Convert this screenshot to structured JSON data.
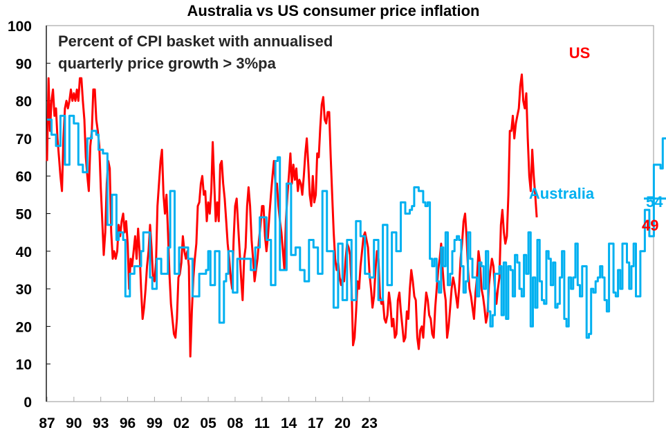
{
  "chart_data": {
    "type": "line",
    "title": "Australia vs US consumer price inflation",
    "subtitle": [
      "Percent of CPI basket with annualised",
      "quarterly price growth > 3%pa"
    ],
    "xlabel": "",
    "ylabel": "",
    "ylim": [
      0,
      100
    ],
    "xlim": [
      1987,
      2024
    ],
    "grid": false,
    "y_ticks": [
      "0",
      "10",
      "20",
      "30",
      "40",
      "50",
      "60",
      "70",
      "80",
      "90",
      "100"
    ],
    "y_tick_values": [
      0,
      10,
      20,
      30,
      40,
      50,
      60,
      70,
      80,
      90,
      100
    ],
    "x_ticks": [
      "87",
      "90",
      "93",
      "96",
      "99",
      "02",
      "05",
      "08",
      "11",
      "14",
      "17",
      "20",
      "23"
    ],
    "x_tick_values": [
      1987,
      1990,
      1993,
      1996,
      1999,
      2002,
      2005,
      2008,
      2011,
      2014,
      2017,
      2020,
      2023
    ],
    "series": [
      {
        "name": "US",
        "label": "US",
        "color": "#ff0000",
        "end_value_label": "49",
        "step": false,
        "x_start": 1987.0,
        "x_step": 0.1667,
        "values": [
          64,
          86,
          72,
          80,
          83,
          76,
          78,
          70,
          65,
          60,
          56,
          70,
          78,
          80,
          78,
          80,
          83,
          80,
          82,
          80,
          83,
          80,
          86,
          86,
          80,
          75,
          65,
          60,
          56,
          68,
          72,
          83,
          83,
          75,
          72,
          68,
          57,
          48,
          39,
          45,
          58,
          64,
          62,
          45,
          38,
          40,
          38,
          40,
          47,
          44,
          48,
          50,
          45,
          48,
          42,
          30,
          38,
          36,
          40,
          44,
          38,
          46,
          40,
          30,
          22,
          25,
          30,
          36,
          40,
          47,
          41,
          33,
          32,
          37,
          52,
          58,
          64,
          67,
          55,
          50,
          55,
          45,
          34,
          26,
          22,
          18,
          17,
          22,
          33,
          34,
          37,
          44,
          40,
          38,
          40,
          36,
          12,
          24,
          33,
          38,
          42,
          52,
          53,
          58,
          60,
          55,
          56,
          48,
          53,
          50,
          56,
          69,
          58,
          48,
          53,
          48,
          63,
          64,
          58,
          54,
          48,
          42,
          38,
          33,
          30,
          43,
          52,
          54,
          47,
          40,
          33,
          27,
          38,
          41,
          52,
          57,
          52,
          43,
          38,
          32,
          35,
          38,
          43,
          47,
          52,
          52,
          44,
          40,
          44,
          50,
          55,
          60,
          64,
          58,
          58,
          52,
          48,
          45,
          40,
          35,
          48,
          55,
          60,
          66,
          58,
          63,
          59,
          62,
          56,
          59,
          58,
          55,
          60,
          66,
          70,
          63,
          55,
          52,
          60,
          53,
          55,
          66,
          65,
          73,
          79,
          81,
          75,
          74,
          77,
          77,
          65,
          55,
          45,
          38,
          35,
          37,
          33,
          31,
          33,
          32,
          38,
          42,
          41,
          39,
          30,
          15,
          17,
          24,
          32,
          30,
          36,
          40,
          44,
          45,
          43,
          41,
          34,
          30,
          25,
          28,
          35,
          40,
          38,
          28,
          26,
          27,
          22,
          21,
          23,
          29,
          26,
          20,
          22,
          17,
          18,
          27,
          29,
          24,
          20,
          16,
          17,
          24,
          22,
          30,
          35,
          32,
          28,
          27,
          17,
          14,
          19,
          20,
          17,
          24,
          29,
          27,
          23,
          22,
          18,
          17,
          25,
          30,
          35,
          38,
          42,
          35,
          30,
          27,
          17,
          20,
          25,
          30,
          33,
          31,
          28,
          25,
          30,
          38,
          42,
          48,
          50,
          44,
          35,
          30,
          28,
          25,
          22,
          29,
          33,
          40,
          37,
          30,
          28,
          25,
          21,
          23,
          31,
          35,
          38,
          36,
          30,
          26,
          30,
          33,
          47,
          51,
          45,
          42,
          44,
          55,
          72,
          72,
          76,
          70,
          74,
          76,
          78,
          84,
          87,
          80,
          78,
          82,
          70,
          60,
          56,
          67,
          60,
          55,
          49
        ]
      },
      {
        "name": "Australia",
        "label": "Australia",
        "color": "#00b0f0",
        "end_value_label": "54",
        "step": true,
        "x_start": 1987.0,
        "x_step": 0.25,
        "values": [
          75,
          75,
          71,
          71,
          68,
          68,
          76,
          76,
          63,
          63,
          76,
          76,
          74,
          74,
          63,
          63,
          61,
          61,
          70,
          70,
          72,
          72,
          71,
          67,
          67,
          66,
          66,
          47,
          47,
          55,
          55,
          43,
          45,
          45,
          43,
          28,
          28,
          34,
          34,
          36,
          36,
          36,
          40,
          45,
          45,
          45,
          33,
          30,
          30,
          38,
          38,
          34,
          34,
          34,
          41,
          56,
          56,
          34,
          34,
          41,
          41,
          41,
          41,
          38,
          38,
          28,
          28,
          28,
          34,
          34,
          34,
          35,
          40,
          31,
          31,
          40,
          40,
          21,
          21,
          32,
          34,
          40,
          40,
          29,
          29,
          38,
          38,
          38,
          38,
          38,
          38,
          35,
          35,
          41,
          41,
          49,
          49,
          49,
          43,
          43,
          31,
          31,
          64,
          65,
          35,
          35,
          35,
          58,
          58,
          39,
          39,
          41,
          41,
          35,
          35,
          32,
          32,
          43,
          43,
          41,
          41,
          34,
          34,
          56,
          56,
          40,
          40,
          40,
          25,
          25,
          42,
          42,
          27,
          27,
          43,
          43,
          27,
          27,
          48,
          48,
          44,
          44,
          34,
          34,
          33,
          33,
          43,
          43,
          27,
          27,
          47,
          47,
          31,
          31,
          45,
          45,
          40,
          40,
          53,
          53,
          50,
          50,
          51,
          52,
          57,
          57,
          56,
          56,
          53,
          52,
          53,
          38,
          36,
          38,
          32,
          29,
          41,
          36,
          45,
          31,
          34,
          40,
          43,
          44,
          43,
          36,
          29,
          32,
          45,
          38,
          33,
          33,
          28,
          37,
          36,
          30,
          40,
          24,
          20,
          23,
          34,
          34,
          36,
          23,
          37,
          22,
          36,
          35,
          28,
          39,
          37,
          30,
          28,
          39,
          34,
          45,
          20,
          33,
          25,
          43,
          32,
          27,
          26,
          40,
          38,
          31,
          37,
          25,
          26,
          33,
          40,
          22,
          20,
          33,
          30,
          33,
          42,
          31,
          28,
          36,
          36,
          17,
          18,
          30,
          29,
          32,
          33,
          36,
          33,
          27,
          24,
          42,
          42,
          29,
          28,
          35,
          30,
          42,
          42,
          37,
          30,
          36,
          42,
          28,
          28,
          40,
          40,
          51,
          51,
          44,
          44,
          63,
          63,
          63,
          62,
          70,
          70,
          70,
          70,
          63,
          63,
          54,
          54
        ]
      }
    ],
    "annotations": [
      {
        "text": "US",
        "series": "US"
      },
      {
        "text": "Australia",
        "series": "Australia"
      },
      {
        "text": "54",
        "series": "Australia",
        "type": "end-value"
      },
      {
        "text": "49",
        "series": "US",
        "type": "end-value"
      }
    ]
  }
}
